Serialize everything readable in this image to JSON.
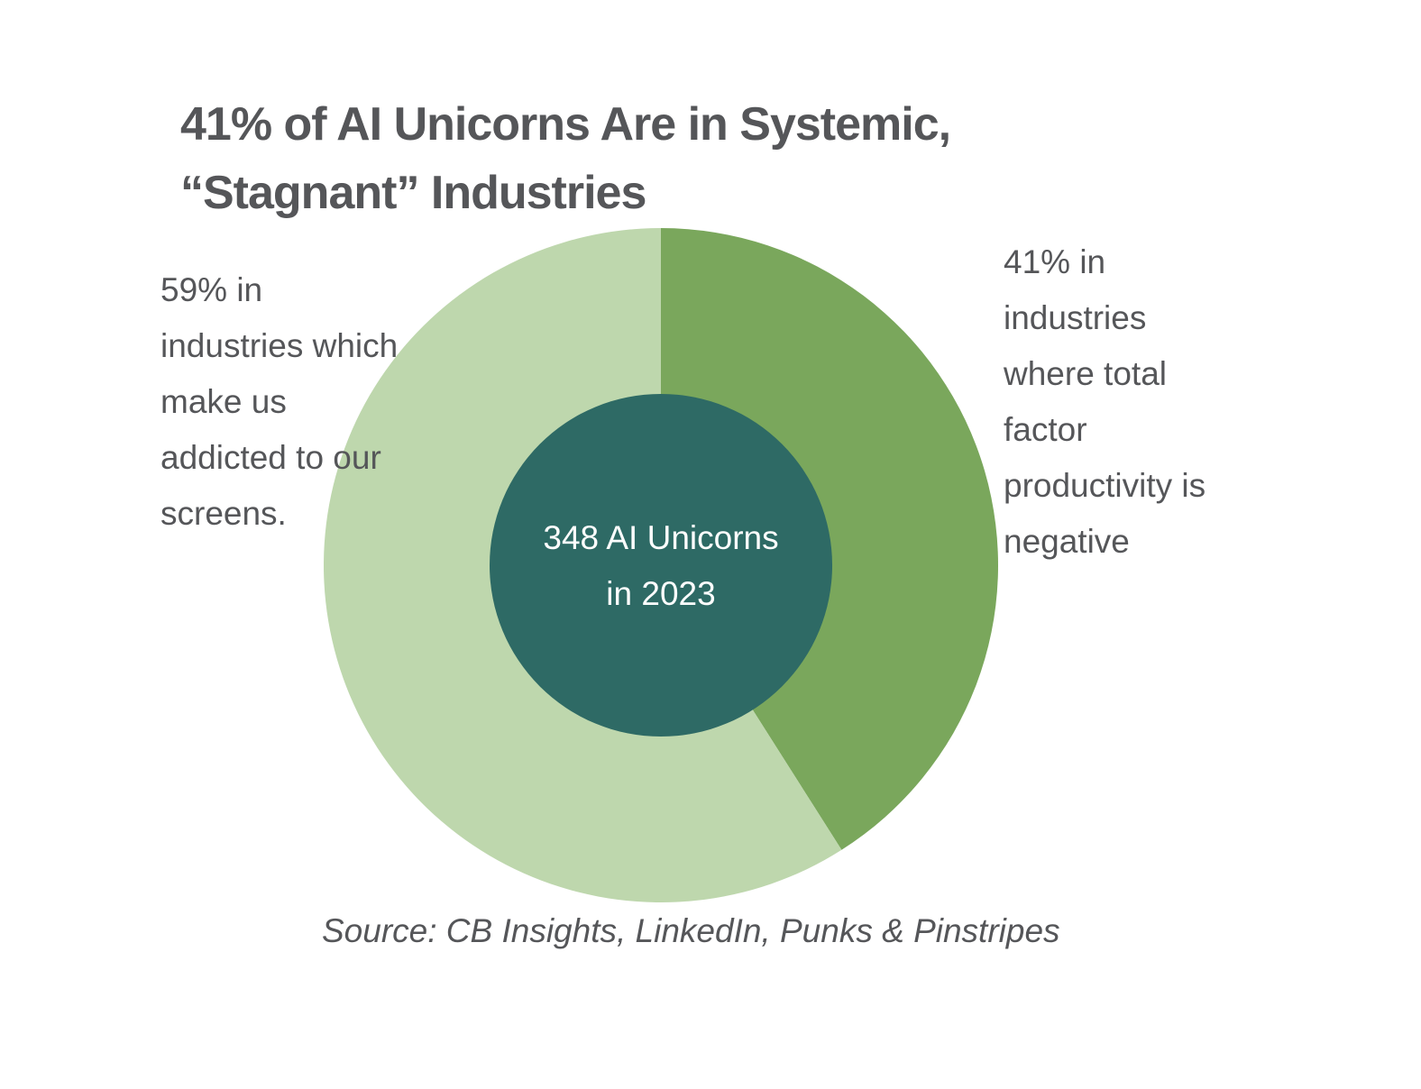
{
  "chart_data": {
    "type": "pie",
    "title_lines": [
      "41% of AI Unicorns Are in Systemic,",
      "“Stagnant” Industries"
    ],
    "center_label_lines": [
      "348 AI Unicorns",
      "in 2023"
    ],
    "slices": [
      {
        "value": 41,
        "label_lines": [
          "41% in",
          "industries",
          "where total",
          "factor",
          "productivity is",
          "negative"
        ],
        "color": "#7aa75c"
      },
      {
        "value": 59,
        "label_lines": [
          "59% in",
          "industries which",
          "make us",
          "addicted to our",
          "screens."
        ],
        "color": "#bed7ad"
      }
    ],
    "center_color": "#2e6a65",
    "source": "Source: CB Insights, LinkedIn, Punks & Pinstripes"
  }
}
